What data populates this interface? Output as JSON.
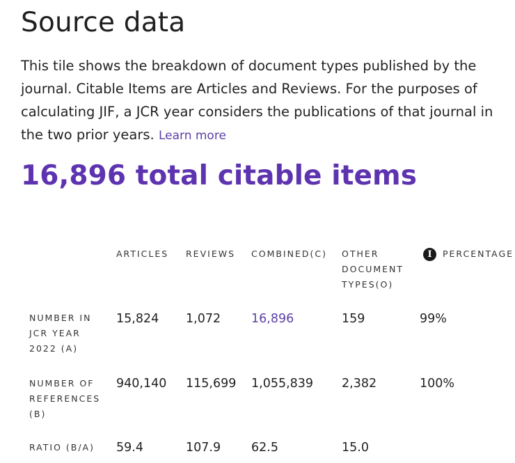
{
  "section": {
    "title": "Source data",
    "description": "This tile shows the breakdown of document types published by the journal. Citable Items are Articles and Reviews. For the purposes of calculating JIF, a JCR year considers the publications of that journal in the two prior years.",
    "learn_more": "Learn more",
    "total": "16,896 total citable items"
  },
  "table": {
    "headers": {
      "articles": "ARTICLES",
      "reviews": "REVIEWS",
      "combined": "COMBINED(C)",
      "other": "OTHER DOCUMENT TYPES(O)",
      "percentage": "PERCENTAGE"
    },
    "rows": [
      {
        "label": "NUMBER IN JCR YEAR 2022 (A)",
        "articles": "15,824",
        "reviews": "1,072",
        "combined": "16,896",
        "other": "159",
        "percentage": "99%"
      },
      {
        "label": "NUMBER OF REFERENCES (B)",
        "articles": "940,140",
        "reviews": "115,699",
        "combined": "1,055,839",
        "other": "2,382",
        "percentage": "100%"
      },
      {
        "label": "RATIO (B/A)",
        "articles": "59.4",
        "reviews": "107.9",
        "combined": "62.5",
        "other": "15.0",
        "percentage": ""
      }
    ]
  },
  "icons": {
    "info": "info-icon"
  },
  "colors": {
    "accent": "#5e33b0",
    "link": "#5b3fa6",
    "text": "#222222"
  }
}
